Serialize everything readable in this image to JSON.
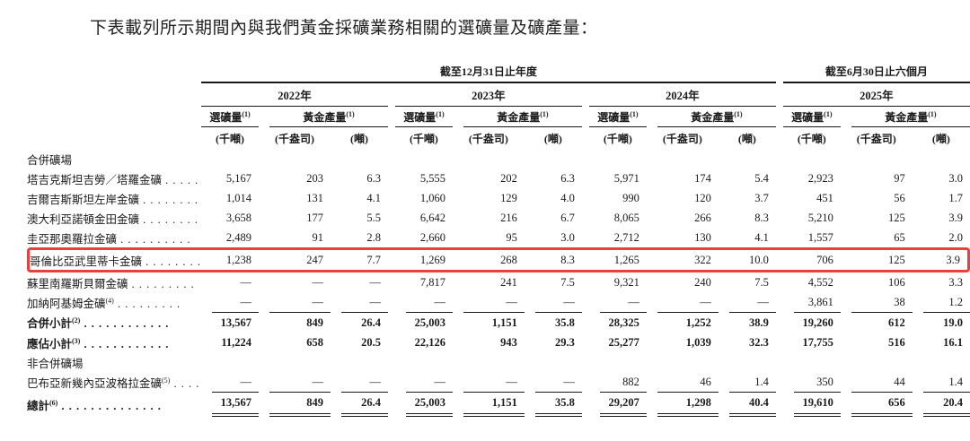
{
  "title": "下表載列所示期間內與我們黃金採礦業務相關的選礦量及礦產量：",
  "colors": {
    "highlight_border": "#e8413a",
    "text": "#1b1b1b"
  },
  "table": {
    "spanners": [
      {
        "label": "截至12月31日止年度"
      },
      {
        "label": "截至6月30日止六個月"
      }
    ],
    "years": [
      "2022年",
      "2023年",
      "2024年",
      "2025年"
    ],
    "ore_header": "選礦量",
    "gold_header": "黃金產量",
    "header_sup": "(1)",
    "units": [
      "(千噸)",
      "(千盎司)",
      "(噸)"
    ],
    "rows": [
      {
        "type": "section",
        "label": "合併礦場"
      },
      {
        "label": "塔吉克斯坦吉勞／塔羅金礦",
        "dots": 5,
        "values": [
          "5,167",
          "203",
          "6.3",
          "5,555",
          "202",
          "6.3",
          "5,971",
          "174",
          "5.4",
          "2,923",
          "97",
          "3.0"
        ]
      },
      {
        "label": "吉爾吉斯斯坦左岸金礦",
        "dots": 8,
        "values": [
          "1,014",
          "131",
          "4.1",
          "1,060",
          "129",
          "4.0",
          "990",
          "120",
          "3.7",
          "451",
          "56",
          "1.7"
        ]
      },
      {
        "label": "澳大利亞諾頓金田金礦",
        "dots": 8,
        "values": [
          "3,658",
          "177",
          "5.5",
          "6,642",
          "216",
          "6.7",
          "8,065",
          "266",
          "8.3",
          "5,210",
          "125",
          "3.9"
        ]
      },
      {
        "label": "圭亞那奧羅拉金礦",
        "dots": 10,
        "values": [
          "2,489",
          "91",
          "2.8",
          "2,660",
          "95",
          "3.0",
          "2,712",
          "130",
          "4.1",
          "1,557",
          "65",
          "2.0"
        ]
      },
      {
        "label": "哥倫比亞武里蒂卡金礦",
        "dots": 8,
        "highlight": true,
        "values": [
          "1,238",
          "247",
          "7.7",
          "1,269",
          "268",
          "8.3",
          "1,265",
          "322",
          "10.0",
          "706",
          "125",
          "3.9"
        ]
      },
      {
        "label": "蘇里南羅斯貝爾金礦",
        "dots": 9,
        "values": [
          "—",
          "—",
          "—",
          "7,817",
          "241",
          "7.5",
          "9,321",
          "240",
          "7.5",
          "4,552",
          "106",
          "3.3"
        ]
      },
      {
        "label": "加納阿基姆金礦",
        "sup": "(4)",
        "dots": 9,
        "values": [
          "—",
          "—",
          "—",
          "—",
          "—",
          "—",
          "—",
          "—",
          "—",
          "3,861",
          "38",
          "1.2"
        ]
      },
      {
        "label": "合併小計",
        "sup": "(2)",
        "dots": 12,
        "bold": true,
        "rule_top": true,
        "values": [
          "13,567",
          "849",
          "26.4",
          "25,003",
          "1,151",
          "35.8",
          "28,325",
          "1,252",
          "38.9",
          "19,260",
          "612",
          "19.0"
        ]
      },
      {
        "label": "應佔小計",
        "sup": "(3)",
        "dots": 12,
        "bold": true,
        "values": [
          "11,224",
          "658",
          "20.5",
          "22,126",
          "943",
          "29.3",
          "25,277",
          "1,039",
          "32.3",
          "17,755",
          "516",
          "16.1"
        ]
      },
      {
        "type": "section",
        "label": "非合併礦場"
      },
      {
        "label": "巴布亞新幾內亞波格拉金礦",
        "sup": "(5)",
        "dots": 4,
        "values": [
          "—",
          "—",
          "—",
          "—",
          "—",
          "—",
          "882",
          "46",
          "1.4",
          "350",
          "44",
          "1.4"
        ]
      },
      {
        "label": "總計",
        "sup": "(6)",
        "dots": 14,
        "bold": true,
        "rule_top": true,
        "rule_bottom": true,
        "values": [
          "13,567",
          "849",
          "26.4",
          "25,003",
          "1,151",
          "35.8",
          "29,207",
          "1,298",
          "40.4",
          "19,610",
          "656",
          "20.4"
        ]
      }
    ]
  }
}
